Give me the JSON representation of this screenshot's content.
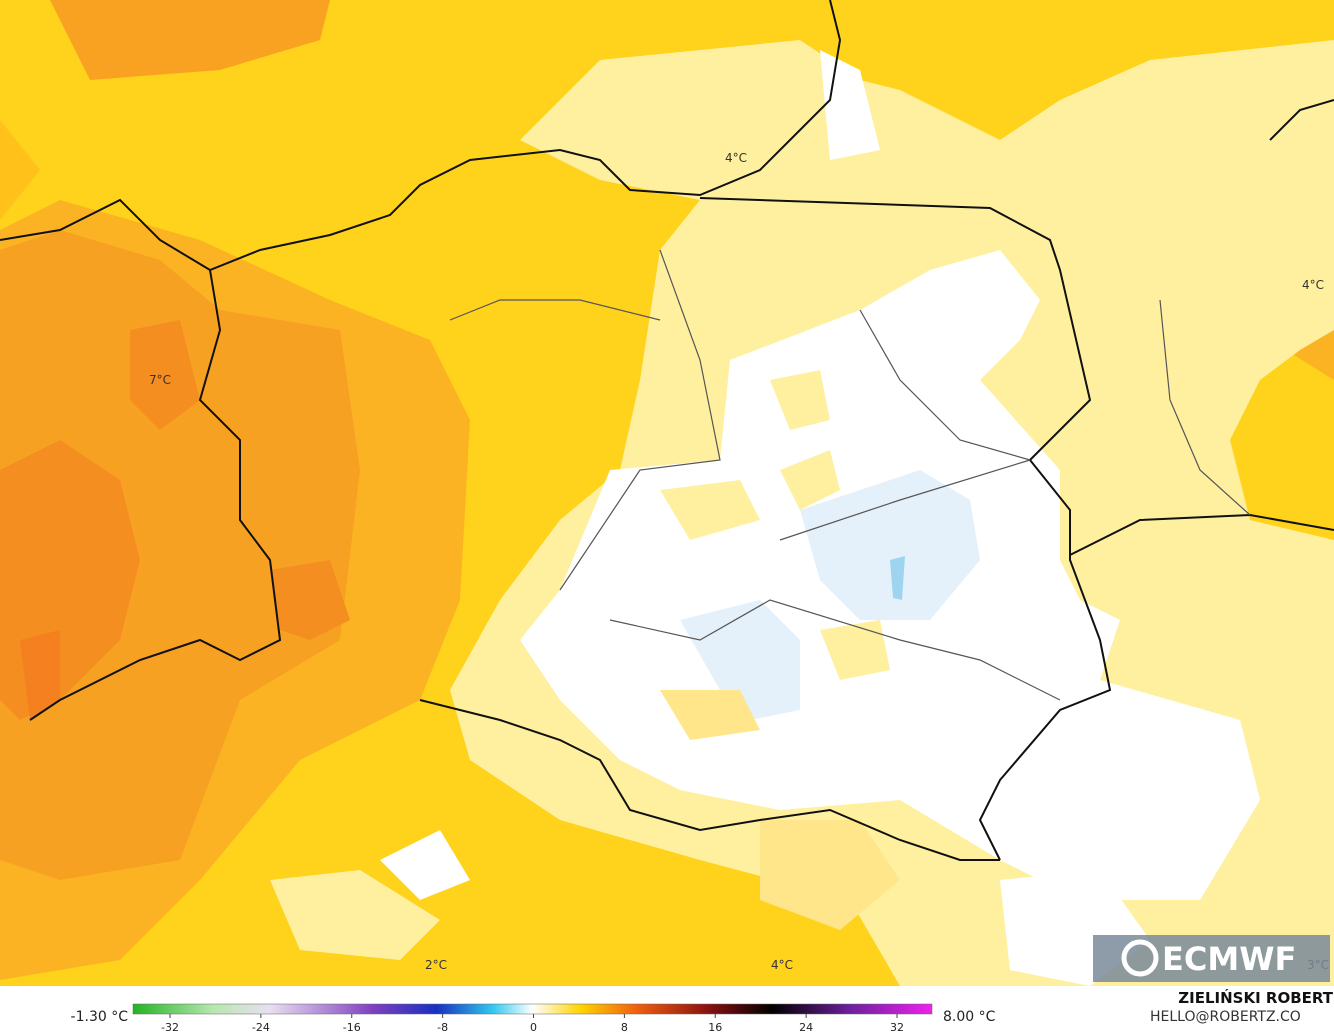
{
  "map_labels": [
    "4°C",
    "7°C",
    "4°C",
    "2°C",
    "4°C",
    "3°C"
  ],
  "logo": "ECMWF",
  "colorbar": {
    "min_label": "-1.30 °C",
    "max_label": "8.00 °C",
    "ticks": [
      -32,
      -24,
      -16,
      -8,
      0,
      8,
      16,
      24,
      32
    ]
  },
  "credit": {
    "author": "ZIELIŃSKI ROBERT",
    "email": "HELLO@ROBERTZ.CO"
  }
}
